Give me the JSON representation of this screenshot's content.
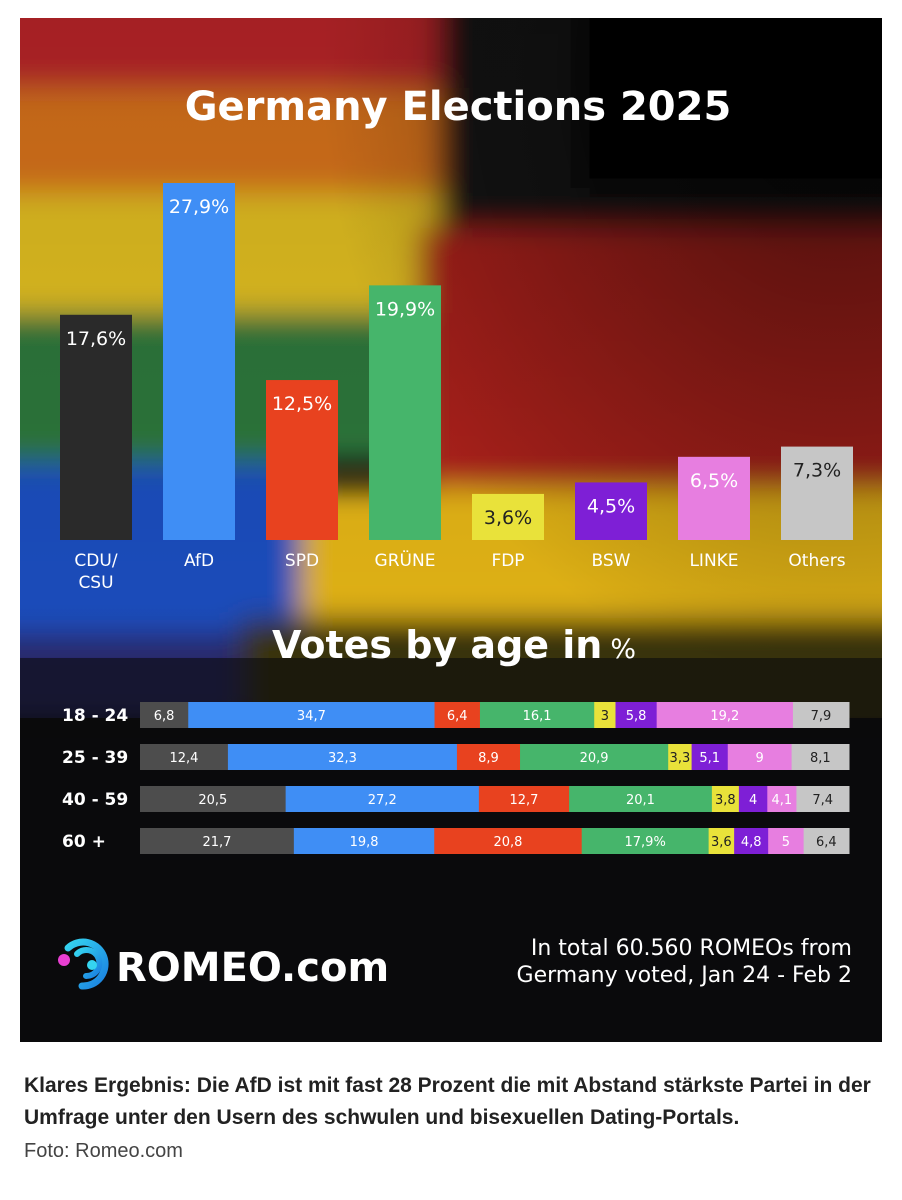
{
  "chart_data": [
    {
      "type": "bar",
      "title": "Germany Elections 2025",
      "categories": [
        "CDU/\nCSU",
        "AfD",
        "SPD",
        "GRÜNE",
        "FDP",
        "BSW",
        "LINKE",
        "Others"
      ],
      "values": [
        17.6,
        27.9,
        12.5,
        19.9,
        3.6,
        4.5,
        6.5,
        7.3
      ],
      "value_labels": [
        "17,6%",
        "27,9%",
        "12,5%",
        "19,9%",
        "3,6%",
        "4,5%",
        "6,5%",
        "7,3%"
      ],
      "colors": [
        "#2a2a2a",
        "#3f8ef5",
        "#e8421f",
        "#46b56b",
        "#e9e23a",
        "#7e1fd6",
        "#e77ee0",
        "#c6c6c6"
      ],
      "ylim": [
        0,
        30
      ]
    },
    {
      "type": "bar",
      "stacked": true,
      "orientation": "horizontal",
      "title": "Votes by age in",
      "title_unit": "%",
      "categories": [
        "18 - 24",
        "25 - 39",
        "40 - 59",
        "60 +"
      ],
      "series_colors": [
        "#4d4d4d",
        "#3f8ef5",
        "#e8421f",
        "#46b56b",
        "#e9e23a",
        "#7e1fd6",
        "#e77ee0",
        "#c6c6c6"
      ],
      "rows": [
        {
          "values": [
            6.8,
            34.7,
            6.4,
            16.1,
            3,
            5.8,
            19.2,
            7.9
          ],
          "labels": [
            "6,8",
            "34,7",
            "6,4",
            "16,1",
            "3",
            "5,8",
            "19,2",
            "7,9"
          ]
        },
        {
          "values": [
            12.4,
            32.3,
            8.9,
            20.9,
            3.3,
            5.1,
            9,
            8.1
          ],
          "labels": [
            "12,4",
            "32,3",
            "8,9",
            "20,9",
            "3,3",
            "5,1",
            "9",
            "8,1"
          ]
        },
        {
          "values": [
            20.5,
            27.2,
            12.7,
            20.1,
            3.8,
            4,
            4.1,
            7.4
          ],
          "labels": [
            "20,5",
            "27,2",
            "12,7",
            "20,1",
            "3,8",
            "4",
            "4,1",
            "7,4"
          ]
        },
        {
          "values": [
            21.7,
            19.8,
            20.8,
            17.9,
            3.6,
            4.8,
            5,
            6.4
          ],
          "labels": [
            "21,7",
            "19,8",
            "20,8",
            "17,9%",
            "3,6",
            "4,8",
            "5",
            "6,4"
          ]
        }
      ]
    }
  ],
  "branding": {
    "logo_text": "ROMEO.com",
    "logo_icon": "romeo-logo-icon",
    "note_lines": [
      "In total 60.560 ROMEOs from",
      "Germany voted, Jan 24 - Feb 2"
    ]
  },
  "caption": {
    "text": "Klares Ergebnis: Die AfD ist mit fast 28 Prozent die mit Abstand stärkste Partei in der Umfrage unter den Usern des schwulen und bisexuellen Dating-Portals.",
    "credit": "Foto: Romeo.com"
  }
}
